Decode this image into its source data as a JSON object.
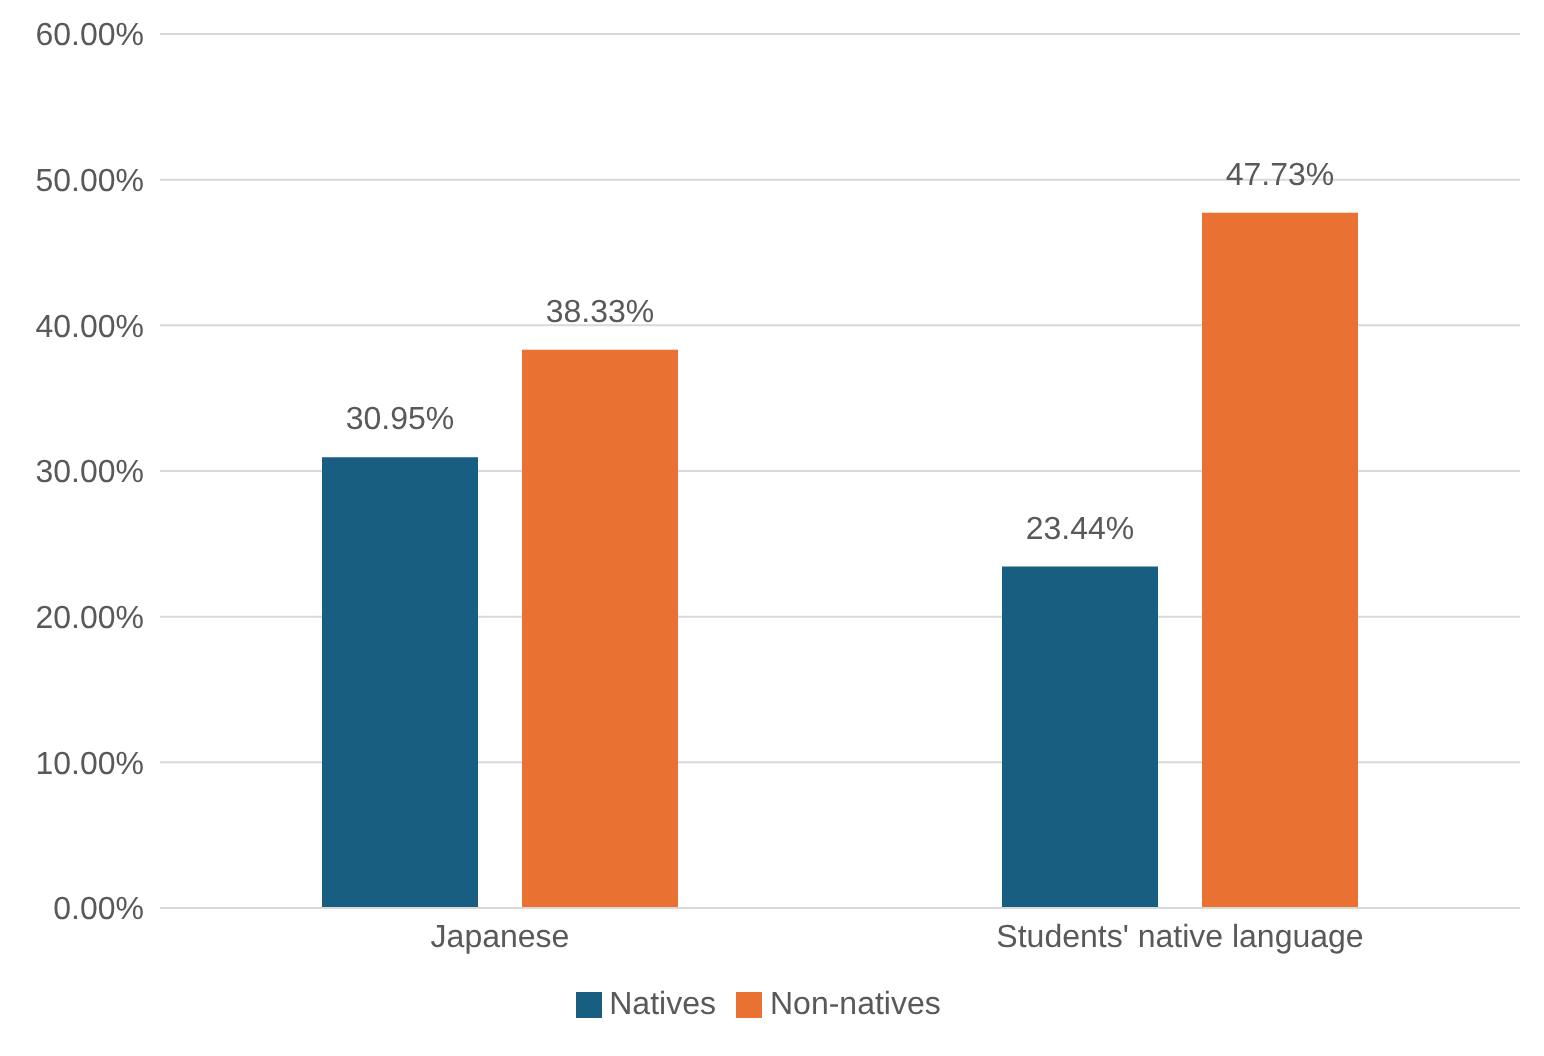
{
  "chart_data": {
    "type": "bar",
    "categories": [
      "Japanese",
      "Students' native language"
    ],
    "series": [
      {
        "name": "Natives",
        "color": "#175e80",
        "values": [
          30.95,
          23.44
        ],
        "value_labels": [
          "30.95%",
          "23.44%"
        ]
      },
      {
        "name": "Non-natives",
        "color": "#e97132",
        "values": [
          38.33,
          47.73
        ],
        "value_labels": [
          "38.33%",
          "47.73%"
        ]
      }
    ],
    "ylim": [
      0,
      60
    ],
    "yticks": [
      {
        "value": 0,
        "label": "0.00%"
      },
      {
        "value": 10,
        "label": "10.00%"
      },
      {
        "value": 20,
        "label": "20.00%"
      },
      {
        "value": 30,
        "label": "30.00%"
      },
      {
        "value": 40,
        "label": "40.00%"
      },
      {
        "value": 50,
        "label": "50.00%"
      },
      {
        "value": 60,
        "label": "60.00%"
      }
    ],
    "grid": "y",
    "legend": "bottom"
  }
}
